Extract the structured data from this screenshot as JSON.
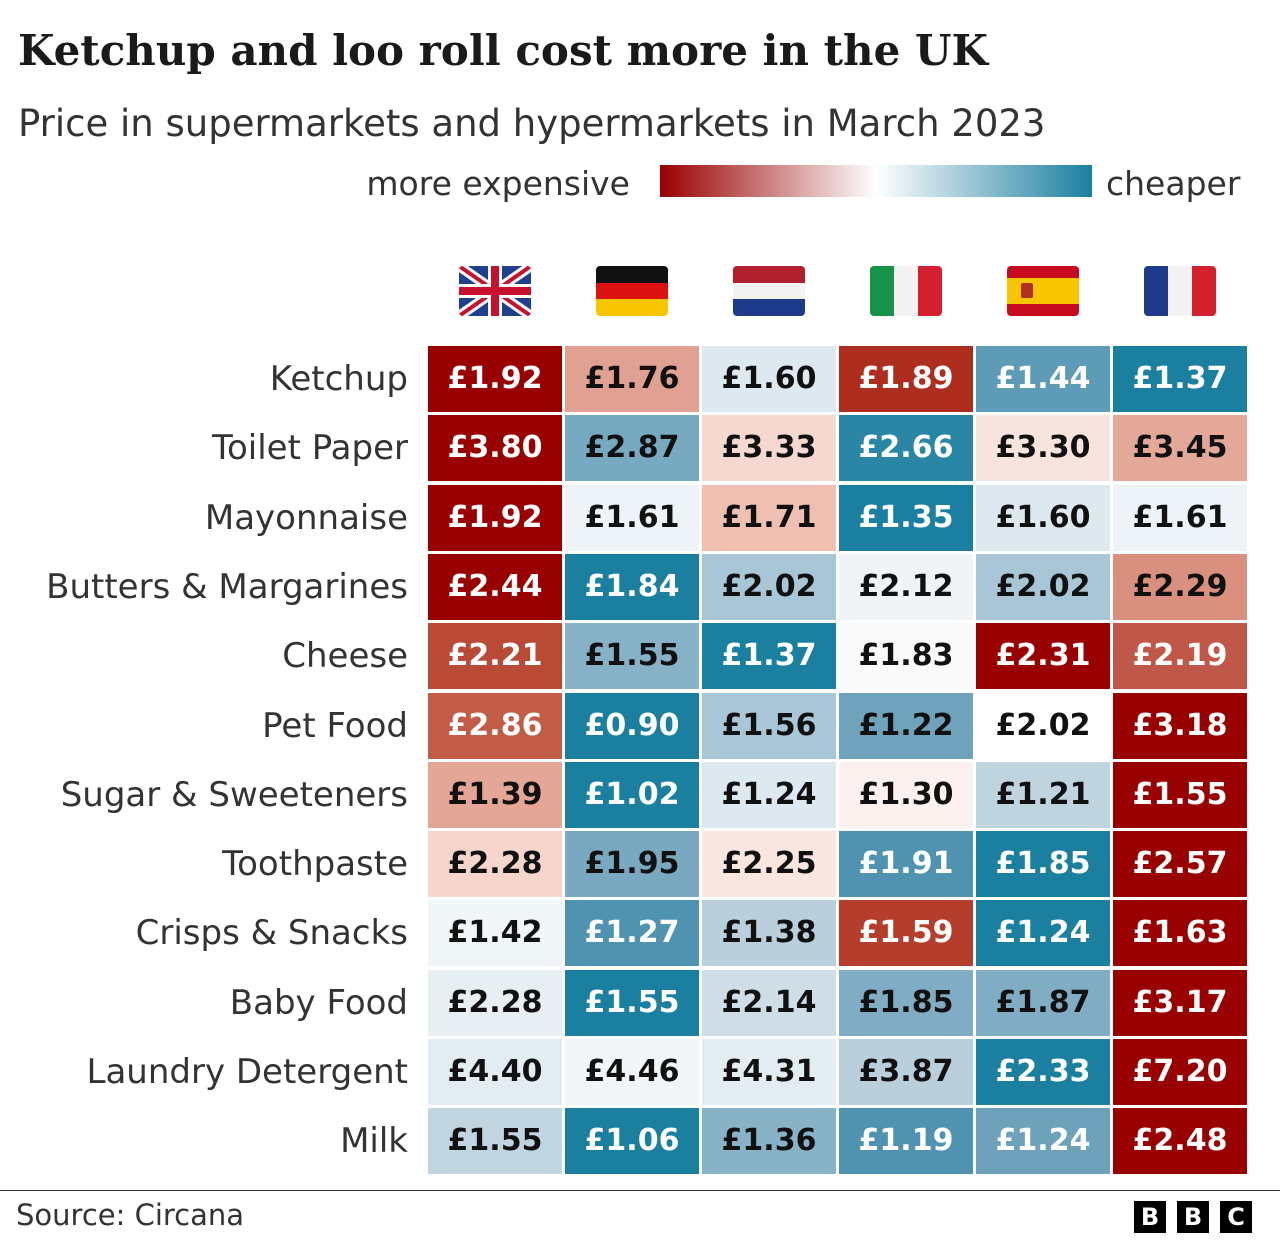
{
  "title": "Ketchup and loo roll cost more in the UK",
  "subtitle": "Price in supermarkets and hypermarkets in March 2023",
  "legend": {
    "left": "more expensive",
    "right": "cheaper",
    "colors": [
      "#990000",
      "#ffffff",
      "#1b7fa0"
    ]
  },
  "source": "Source: Circana",
  "logo": [
    "B",
    "B",
    "C"
  ],
  "chart_data": {
    "type": "heatmap",
    "title": "Ketchup and loo roll cost more in the UK",
    "columns": [
      "UK",
      "Germany",
      "Netherlands",
      "Italy",
      "Spain",
      "France"
    ],
    "column_icons": [
      "flag-uk-icon",
      "flag-germany-icon",
      "flag-netherlands-icon",
      "flag-italy-icon",
      "flag-spain-icon",
      "flag-france-icon"
    ],
    "rows": [
      "Ketchup",
      "Toilet Paper",
      "Mayonnaise",
      "Butters & Margarines",
      "Cheese",
      "Pet Food",
      "Sugar & Sweeteners",
      "Toothpaste",
      "Crisps & Snacks",
      "Baby Food",
      "Laundry Detergent",
      "Milk"
    ],
    "values": [
      [
        "£1.92",
        "£1.76",
        "£1.60",
        "£1.89",
        "£1.44",
        "£1.37"
      ],
      [
        "£3.80",
        "£2.87",
        "£3.33",
        "£2.66",
        "£3.30",
        "£3.45"
      ],
      [
        "£1.92",
        "£1.61",
        "£1.71",
        "£1.35",
        "£1.60",
        "£1.61"
      ],
      [
        "£2.44",
        "£1.84",
        "£2.02",
        "£2.12",
        "£2.02",
        "£2.29"
      ],
      [
        "£2.21",
        "£1.55",
        "£1.37",
        "£1.83",
        "£2.31",
        "£2.19"
      ],
      [
        "£2.86",
        "£0.90",
        "£1.56",
        "£1.22",
        "£2.02",
        "£3.18"
      ],
      [
        "£1.39",
        "£1.02",
        "£1.24",
        "£1.30",
        "£1.21",
        "£1.55"
      ],
      [
        "£2.28",
        "£1.95",
        "£2.25",
        "£1.91",
        "£1.85",
        "£2.57"
      ],
      [
        "£1.42",
        "£1.27",
        "£1.38",
        "£1.59",
        "£1.24",
        "£1.63"
      ],
      [
        "£2.28",
        "£1.55",
        "£2.14",
        "£1.85",
        "£1.87",
        "£3.17"
      ],
      [
        "£4.40",
        "£4.46",
        "£4.31",
        "£3.87",
        "£2.33",
        "£7.20"
      ],
      [
        "£1.55",
        "£1.06",
        "£1.36",
        "£1.19",
        "£1.24",
        "£2.48"
      ]
    ],
    "colors": [
      [
        "#990000",
        "#e0a193",
        "#dde8ef",
        "#ad2e1e",
        "#5e9bb6",
        "#1b7fa0"
      ],
      [
        "#990000",
        "#77a9c0",
        "#f5d8cf",
        "#2a86a5",
        "#f8e4de",
        "#e3a898"
      ],
      [
        "#990000",
        "#edf3f6",
        "#efbfb2",
        "#1a7fa0",
        "#dde8ef",
        "#edf3f6"
      ],
      [
        "#990000",
        "#1b7fa0",
        "#a8c6d5",
        "#f1f4f6",
        "#a8c6d5",
        "#d9907e"
      ],
      [
        "#b94a36",
        "#86b1c6",
        "#1b7fa0",
        "#fafafa",
        "#990000",
        "#c0584a"
      ],
      [
        "#c35c46",
        "#1b7fa0",
        "#a8c6d5",
        "#6fa3bb",
        "#ffffff",
        "#990000"
      ],
      [
        "#e4a797",
        "#1b7fa0",
        "#dde8ef",
        "#fcf1ee",
        "#bfd4df",
        "#990000"
      ],
      [
        "#f5d5cc",
        "#78a9c0",
        "#f9e6e0",
        "#4f93b0",
        "#1b7fa0",
        "#990000"
      ],
      [
        "#f0f5f7",
        "#4f93b0",
        "#b9d0dc",
        "#b43e2b",
        "#1b7fa0",
        "#990000"
      ],
      [
        "#e8eff3",
        "#1b7fa0",
        "#cfdee6",
        "#80adc3",
        "#80adc3",
        "#990000"
      ],
      [
        "#e3ecf1",
        "#f1f5f7",
        "#e3ecf1",
        "#b9cfdb",
        "#1b7fa0",
        "#990000"
      ],
      [
        "#c1d5e0",
        "#1b7fa0",
        "#88b3c7",
        "#4f93b0",
        "#6ea2ba",
        "#990000"
      ]
    ]
  }
}
